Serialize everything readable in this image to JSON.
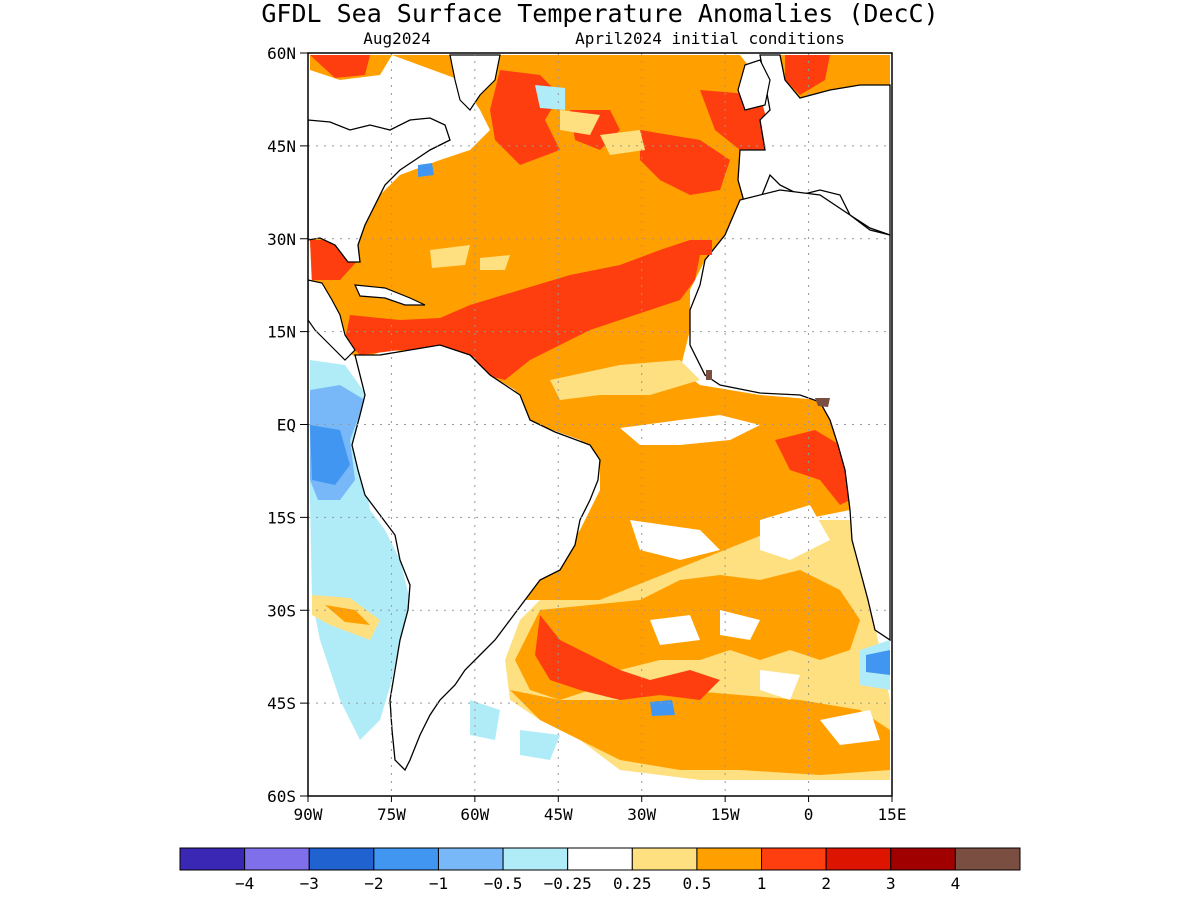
{
  "title": "GFDL Sea Surface Temperature Anomalies (DecC)",
  "subtitle_left": "Aug2024",
  "subtitle_right": "April2024 initial conditions",
  "map": {
    "lat_labels": [
      "60N",
      "45N",
      "30N",
      "15N",
      "EQ",
      "15S",
      "30S",
      "45S",
      "60S"
    ],
    "lon_labels": [
      "90W",
      "75W",
      "60W",
      "45W",
      "30W",
      "15W",
      "0",
      "15E"
    ],
    "lat_range": [
      -60,
      60
    ],
    "lon_range": [
      -90,
      15
    ],
    "gridlines": "dotted"
  },
  "colorbar": {
    "colors": [
      "#3a28b4",
      "#7f6fea",
      "#1f62d0",
      "#4096f0",
      "#78b8f8",
      "#b0ecf8",
      "#ffffff",
      "#fee080",
      "#ffa000",
      "#ff3e10",
      "#dc1400",
      "#a00000",
      "#7a4e40"
    ],
    "labels": [
      "-4",
      "-3",
      "-2",
      "-1",
      "-0.5",
      "-0.25",
      "0.25",
      "0.5",
      "1",
      "2",
      "3",
      "4"
    ]
  },
  "palette": {
    "land": "#ffffff",
    "ocean_neutral": "#ffffff",
    "warm_light": "#fee080",
    "warm": "#ffa000",
    "hot": "#ff3e10",
    "very_hot": "#dc1400",
    "cool_light": "#b0ecf8",
    "cool": "#78b8f8",
    "cold": "#4096f0"
  }
}
